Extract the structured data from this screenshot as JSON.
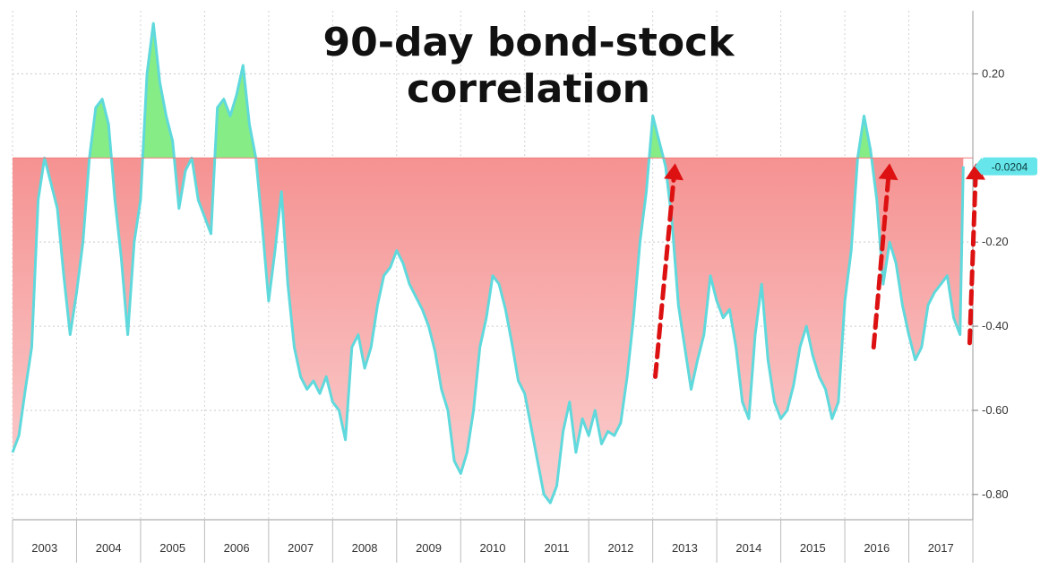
{
  "chart_data": {
    "type": "area",
    "title_lines": [
      "90-day bond-stock",
      "correlation"
    ],
    "xlabel": "",
    "ylabel": "",
    "x_tick_labels": [
      "2003",
      "2004",
      "2005",
      "2006",
      "2007",
      "2008",
      "2009",
      "2010",
      "2011",
      "2012",
      "2013",
      "2014",
      "2015",
      "2016",
      "2017"
    ],
    "y_tick_labels": [
      "0.20",
      "-0.20",
      "-0.40",
      "-0.60",
      "-0.80"
    ],
    "y_ticks": [
      0.2,
      -0.2,
      -0.4,
      -0.6,
      -0.8
    ],
    "xlim": [
      2003.0,
      2018.0
    ],
    "ylim": [
      -0.86,
      0.35
    ],
    "baseline": 0.0,
    "last_value_label": "-0.0204",
    "grid": true,
    "colors": {
      "negative_fill": "#f37a7a",
      "negative_fill_light": "#fbd0d0",
      "positive_fill": "#86ec86",
      "line": "#5fd9dc",
      "label_bg": "#66e6ea",
      "arrow": "#dd1111",
      "axis_text": "#333333"
    },
    "series": [
      {
        "x": [
          2003.0,
          2003.1,
          2003.2,
          2003.3,
          2003.4,
          2003.5,
          2003.6,
          2003.7,
          2003.8,
          2003.9,
          2004.0,
          2004.1,
          2004.2,
          2004.3,
          2004.4,
          2004.5,
          2004.6,
          2004.7,
          2004.8,
          2004.9,
          2005.0,
          2005.1,
          2005.2,
          2005.3,
          2005.4,
          2005.5,
          2005.6,
          2005.7,
          2005.8,
          2005.9,
          2006.0,
          2006.1,
          2006.2,
          2006.3,
          2006.4,
          2006.5,
          2006.6,
          2006.7,
          2006.8,
          2006.9,
          2007.0,
          2007.1,
          2007.2,
          2007.3,
          2007.4,
          2007.5,
          2007.6,
          2007.7,
          2007.8,
          2007.9,
          2008.0,
          2008.1,
          2008.2,
          2008.3,
          2008.4,
          2008.5,
          2008.6,
          2008.7,
          2008.8,
          2008.9,
          2009.0,
          2009.1,
          2009.2,
          2009.3,
          2009.4,
          2009.5,
          2009.6,
          2009.7,
          2009.8,
          2009.9,
          2010.0,
          2010.1,
          2010.2,
          2010.3,
          2010.4,
          2010.5,
          2010.6,
          2010.7,
          2010.8,
          2010.9,
          2011.0,
          2011.1,
          2011.2,
          2011.3,
          2011.4,
          2011.5,
          2011.6,
          2011.7,
          2011.8,
          2011.9,
          2012.0,
          2012.1,
          2012.2,
          2012.3,
          2012.4,
          2012.5,
          2012.6,
          2012.7,
          2012.8,
          2012.9,
          2013.0,
          2013.1,
          2013.2,
          2013.3,
          2013.4,
          2013.5,
          2013.6,
          2013.7,
          2013.8,
          2013.9,
          2014.0,
          2014.1,
          2014.2,
          2014.3,
          2014.4,
          2014.5,
          2014.6,
          2014.7,
          2014.8,
          2014.9,
          2015.0,
          2015.1,
          2015.2,
          2015.3,
          2015.4,
          2015.5,
          2015.6,
          2015.7,
          2015.8,
          2015.9,
          2016.0,
          2016.1,
          2016.2,
          2016.3,
          2016.4,
          2016.5,
          2016.6,
          2016.7,
          2016.8,
          2016.9,
          2017.0,
          2017.1,
          2017.2,
          2017.3,
          2017.4,
          2017.5,
          2017.6,
          2017.7,
          2017.8,
          2017.85
        ],
        "values": [
          -0.7,
          -0.66,
          -0.55,
          -0.45,
          -0.1,
          0.0,
          -0.06,
          -0.12,
          -0.28,
          -0.42,
          -0.32,
          -0.2,
          0.0,
          0.12,
          0.14,
          0.08,
          -0.1,
          -0.24,
          -0.42,
          -0.2,
          -0.1,
          0.2,
          0.32,
          0.18,
          0.1,
          0.04,
          -0.12,
          -0.03,
          0.0,
          -0.1,
          -0.14,
          -0.18,
          0.12,
          0.14,
          0.1,
          0.15,
          0.22,
          0.08,
          0.0,
          -0.16,
          -0.34,
          -0.22,
          -0.08,
          -0.3,
          -0.45,
          -0.52,
          -0.55,
          -0.53,
          -0.56,
          -0.52,
          -0.58,
          -0.6,
          -0.67,
          -0.45,
          -0.42,
          -0.5,
          -0.45,
          -0.35,
          -0.28,
          -0.26,
          -0.22,
          -0.25,
          -0.3,
          -0.33,
          -0.36,
          -0.4,
          -0.46,
          -0.55,
          -0.6,
          -0.72,
          -0.75,
          -0.7,
          -0.6,
          -0.45,
          -0.38,
          -0.28,
          -0.3,
          -0.36,
          -0.44,
          -0.53,
          -0.56,
          -0.64,
          -0.72,
          -0.8,
          -0.82,
          -0.78,
          -0.65,
          -0.58,
          -0.7,
          -0.62,
          -0.66,
          -0.6,
          -0.68,
          -0.65,
          -0.66,
          -0.63,
          -0.52,
          -0.38,
          -0.2,
          -0.08,
          0.1,
          0.04,
          -0.02,
          -0.15,
          -0.35,
          -0.45,
          -0.55,
          -0.48,
          -0.42,
          -0.28,
          -0.34,
          -0.38,
          -0.36,
          -0.45,
          -0.58,
          -0.62,
          -0.42,
          -0.3,
          -0.48,
          -0.58,
          -0.62,
          -0.6,
          -0.54,
          -0.45,
          -0.4,
          -0.47,
          -0.52,
          -0.55,
          -0.62,
          -0.58,
          -0.34,
          -0.22,
          0.0,
          0.1,
          0.02,
          -0.1,
          -0.3,
          -0.2,
          -0.25,
          -0.35,
          -0.42,
          -0.48,
          -0.45,
          -0.35,
          -0.32,
          -0.3,
          -0.28,
          -0.38,
          -0.42,
          -0.02
        ]
      }
    ],
    "annotations": [
      {
        "type": "dashed-arrow",
        "from": [
          2013.04,
          -0.52
        ],
        "to": [
          2013.35,
          0.0
        ]
      },
      {
        "type": "dashed-arrow",
        "from": [
          2016.45,
          -0.45
        ],
        "to": [
          2016.7,
          0.0
        ]
      },
      {
        "type": "dashed-arrow",
        "from": [
          2017.95,
          -0.44
        ],
        "to": [
          2018.05,
          0.0
        ]
      }
    ]
  }
}
